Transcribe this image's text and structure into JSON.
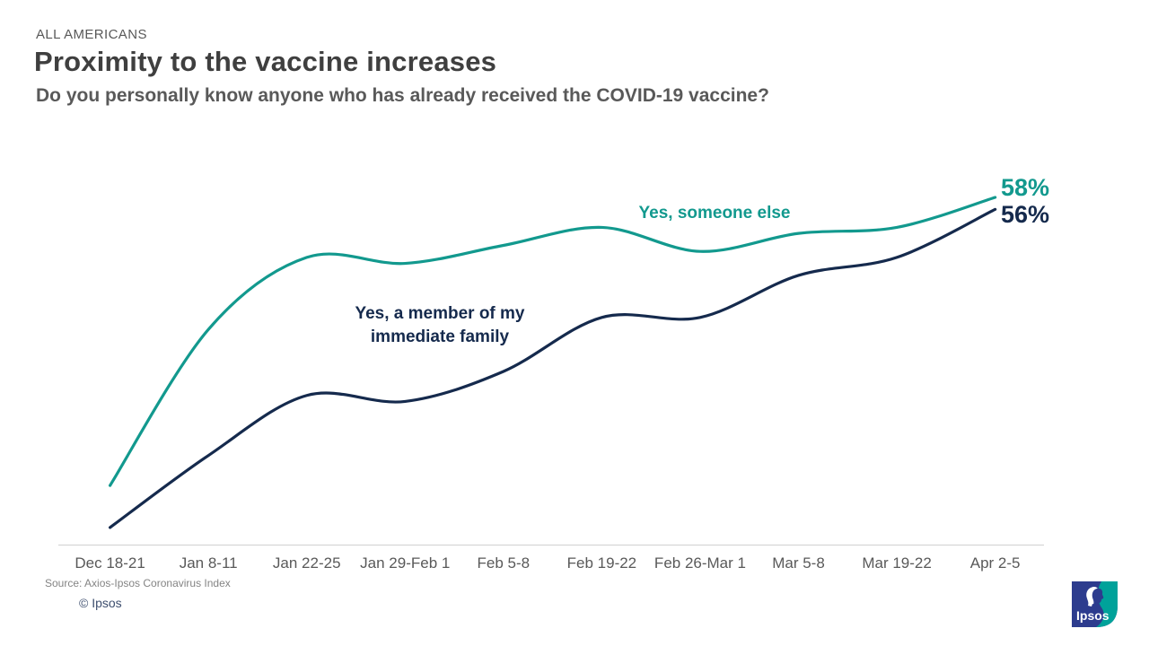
{
  "header": {
    "kicker": "ALL AMERICANS",
    "title": "Proximity to the vaccine increases",
    "subtitle": "Do you personally know anyone who has already received the COVID-19 vaccine?"
  },
  "chart_data": {
    "type": "line",
    "categories": [
      "Dec 18-21",
      "Jan 8-11",
      "Jan 22-25",
      "Jan 29-Feb 1",
      "Feb 5-8",
      "Feb 19-22",
      "Feb 26-Mar 1",
      "Mar 5-8",
      "Mar 19-22",
      "Apr 2-5"
    ],
    "series": [
      {
        "name": "Yes, someone else",
        "color": "#12998e",
        "values": [
          10,
          36,
          48,
          47,
          50,
          53,
          49,
          52,
          53,
          58
        ],
        "end_label": "58%"
      },
      {
        "name": "Yes, a member of my immediate family",
        "color": "#152a4d",
        "values": [
          3,
          15,
          25,
          24,
          29,
          38,
          38,
          45,
          48,
          56
        ],
        "end_label": "56%"
      }
    ],
    "ylim": [
      0,
      65
    ],
    "xlabel": "",
    "ylabel": "",
    "grid": false,
    "legend_position": "inline-annotations",
    "axis_line_color": "#d6d6d6",
    "unit": "%"
  },
  "footer": {
    "source": "Source: Axios-Ipsos Coronavirus Index",
    "copyright": "© Ipsos",
    "logo_text": "Ipsos"
  },
  "colors": {
    "teal_accent": "#12998e",
    "navy_accent": "#152a4d",
    "logo_blue": "#2d3c8e",
    "logo_teal": "#00a29a"
  }
}
